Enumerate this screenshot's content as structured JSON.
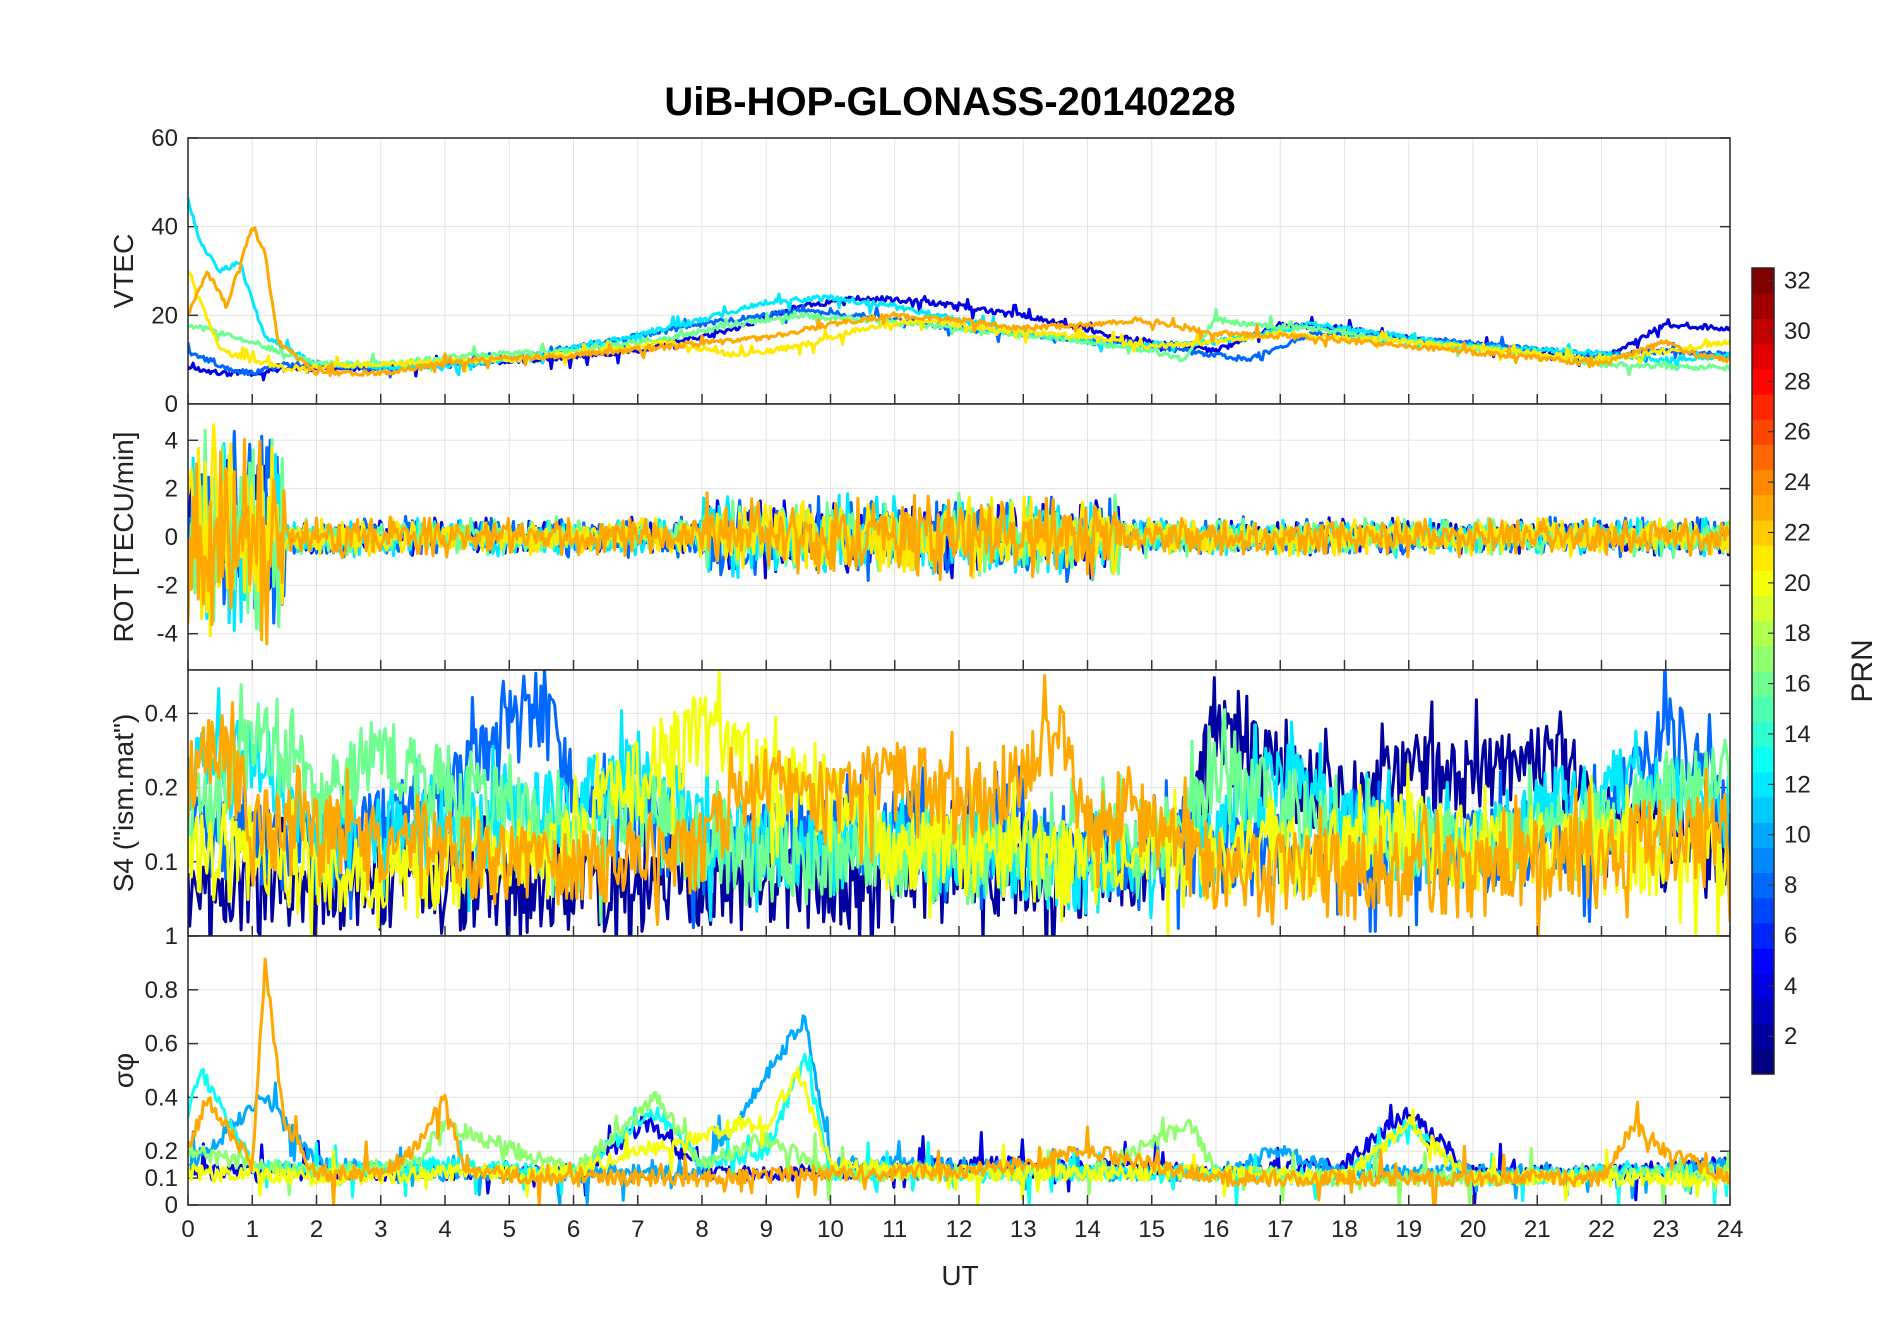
{
  "chart_data": {
    "type": "line",
    "title": "UiB-HOP-GLONASS-20140228",
    "xlabel": "UT",
    "xlim": [
      0,
      24
    ],
    "x_ticks": [
      "0",
      "1",
      "2",
      "3",
      "4",
      "5",
      "6",
      "7",
      "8",
      "9",
      "10",
      "11",
      "12",
      "13",
      "14",
      "15",
      "16",
      "17",
      "18",
      "19",
      "20",
      "21",
      "22",
      "23",
      "24"
    ],
    "panels": [
      {
        "id": "vtec",
        "ylabel": "VTEC",
        "ylim": [
          0,
          60
        ],
        "y_ticks": [
          "0",
          "20",
          "40",
          "60"
        ],
        "y_tick_values": [
          0,
          20,
          40,
          60
        ],
        "scale": "linear",
        "noise": 0.6,
        "series": [
          {
            "prn": 4,
            "x": [
              0,
              0.5,
              1.0,
              1.5,
              2.5,
              4,
              5.5,
              7,
              8.5,
              9.5,
              10.5,
              11.5,
              13,
              14.5,
              16,
              17,
              18,
              19.5,
              21,
              22,
              23,
              24
            ],
            "y": [
              8,
              7,
              7,
              8,
              8,
              9,
              10,
              12,
              17,
              22,
              24,
              23,
              20,
              15,
              12,
              18,
              17,
              14,
              12,
              10,
              18,
              17
            ]
          },
          {
            "prn": 8,
            "x": [
              0,
              0.6,
              1.0,
              1.5,
              3,
              5,
              6.5,
              8,
              9.5,
              10.5,
              12,
              13.5,
              14.5,
              15.5,
              16.5,
              17.5,
              19,
              20.5,
              22,
              23,
              24
            ],
            "y": [
              12,
              8,
              7,
              9,
              8,
              10,
              14,
              18,
              21,
              20,
              17,
              15,
              14,
              12,
              10,
              16,
              15,
              13,
              11,
              12,
              11
            ]
          },
          {
            "prn": 12,
            "x": [
              0,
              0.2,
              0.5,
              0.8,
              1.2,
              2,
              3.5,
              5,
              6.5,
              8,
              9,
              10,
              11,
              12,
              13,
              14.5,
              16,
              17.5,
              19,
              20,
              21.5,
              23,
              24
            ],
            "y": [
              46,
              36,
              30,
              32,
              15,
              9,
              8,
              10,
              14,
              19,
              23,
              24,
              22,
              19,
              16,
              13,
              14,
              18,
              15,
              13,
              12,
              10,
              11
            ]
          },
          {
            "prn": 16,
            "x": [
              0,
              1,
              2,
              3,
              4.5,
              6,
              7.5,
              8.5,
              9.5,
              10.5,
              12,
              13.5,
              14.5,
              15,
              15.5,
              16,
              16.5,
              17.5,
              19,
              20.5,
              22,
              24
            ],
            "y": [
              18,
              14,
              9,
              9,
              11,
              12,
              15,
              18,
              20,
              19,
              17,
              15,
              13,
              12,
              10,
              19,
              18,
              17,
              14,
              12,
              9,
              8
            ]
          },
          {
            "prn": 21,
            "x": [
              0,
              0.5,
              1.0,
              1.5,
              3,
              5,
              6.5,
              7.5,
              8.5,
              9.5,
              10.5,
              11.5,
              12.5,
              14,
              15,
              16,
              17,
              18,
              19,
              20.5,
              22,
              23,
              24
            ],
            "y": [
              30,
              12,
              10,
              8,
              9,
              10,
              12,
              14,
              11,
              13,
              17,
              19,
              17,
              15,
              13,
              14,
              16,
              15,
              14,
              12,
              10,
              12,
              14
            ]
          },
          {
            "prn": 23,
            "x": [
              0,
              0.3,
              0.6,
              1.0,
              1.2,
              1.4,
              2,
              3,
              4.5,
              6,
              7.5,
              9,
              10,
              11,
              12,
              13,
              14,
              14.8,
              16,
              17.5,
              19,
              20.5,
              22,
              23,
              23.5,
              24
            ],
            "y": [
              20,
              30,
              22,
              40,
              34,
              14,
              7,
              7,
              10,
              11,
              13,
              15,
              18,
              20,
              19,
              17,
              18,
              19,
              16,
              15,
              13,
              11,
              9,
              14,
              11,
              10
            ]
          }
        ]
      },
      {
        "id": "rot",
        "ylabel": "ROT [TECU/min]",
        "ylim": [
          -5.5,
          5.5
        ],
        "y_ticks": [
          "-4",
          "-2",
          "0",
          "2",
          "4"
        ],
        "y_tick_values": [
          -4,
          -2,
          0,
          2,
          4
        ],
        "scale": "linear",
        "noise": 0.0,
        "series": [
          {
            "prn": 4,
            "x": [
              0,
              24
            ],
            "y": [
              0,
              0
            ]
          },
          {
            "prn": 8,
            "x": [
              0,
              24
            ],
            "y": [
              0,
              0
            ]
          },
          {
            "prn": 12,
            "x": [
              0,
              24
            ],
            "y": [
              0,
              0
            ]
          },
          {
            "prn": 16,
            "x": [
              0,
              24
            ],
            "y": [
              0,
              0
            ]
          },
          {
            "prn": 21,
            "x": [
              0,
              24
            ],
            "y": [
              0,
              0
            ]
          },
          {
            "prn": 23,
            "x": [
              0,
              24
            ],
            "y": [
              0,
              0
            ]
          }
        ]
      },
      {
        "id": "s4",
        "ylabel": "S4 (\"ism.mat\")",
        "ylim": [
          0.05,
          0.6
        ],
        "y_ticks": [
          "0.1",
          "0.2",
          "0.4"
        ],
        "y_tick_values": [
          0.1,
          0.2,
          0.4
        ],
        "scale": "log",
        "noise": 0.03,
        "series": [
          {
            "prn": 2,
            "x": [
              0,
              2,
              5,
              8,
              10,
              12,
              14,
              15.5,
              16,
              17,
              18,
              19,
              20,
              21,
              22,
              24
            ],
            "y": [
              0.07,
              0.07,
              0.07,
              0.07,
              0.07,
              0.08,
              0.08,
              0.1,
              0.3,
              0.2,
              0.15,
              0.2,
              0.2,
              0.25,
              0.12,
              0.1
            ]
          },
          {
            "prn": 8,
            "x": [
              0,
              2,
              4,
              5,
              5.5,
              6,
              8,
              10,
              12,
              14,
              16,
              18,
              20,
              22,
              23,
              24
            ],
            "y": [
              0.12,
              0.1,
              0.15,
              0.3,
              0.4,
              0.15,
              0.1,
              0.12,
              0.12,
              0.1,
              0.1,
              0.1,
              0.1,
              0.12,
              0.3,
              0.12
            ]
          },
          {
            "prn": 12,
            "x": [
              0,
              1,
              2,
              4,
              6,
              7,
              8,
              10,
              12,
              14,
              16,
              17,
              18,
              20,
              22,
              24
            ],
            "y": [
              0.2,
              0.25,
              0.1,
              0.12,
              0.15,
              0.2,
              0.12,
              0.1,
              0.1,
              0.08,
              0.1,
              0.2,
              0.12,
              0.1,
              0.18,
              0.15
            ]
          },
          {
            "prn": 16,
            "x": [
              0,
              1.3,
              2,
              3,
              3.5,
              4,
              6,
              7,
              8,
              10,
              12,
              14,
              15.5,
              16,
              18,
              20,
              22,
              24
            ],
            "y": [
              0.12,
              0.3,
              0.15,
              0.25,
              0.2,
              0.18,
              0.1,
              0.15,
              0.1,
              0.09,
              0.09,
              0.1,
              0.12,
              0.2,
              0.1,
              0.1,
              0.12,
              0.2
            ]
          },
          {
            "prn": 20,
            "x": [
              0,
              2,
              4,
              6,
              7,
              8,
              9,
              10,
              11,
              12,
              14,
              16,
              18,
              19,
              20,
              22,
              24
            ],
            "y": [
              0.1,
              0.08,
              0.08,
              0.1,
              0.2,
              0.3,
              0.2,
              0.15,
              0.1,
              0.1,
              0.09,
              0.09,
              0.1,
              0.12,
              0.1,
              0.1,
              0.1
            ]
          },
          {
            "prn": 23,
            "x": [
              0,
              0.5,
              1,
              2,
              3,
              4,
              6,
              8,
              9,
              10,
              11,
              12,
              13,
              13.5,
              14,
              14.5,
              16,
              18,
              20,
              22,
              24
            ],
            "y": [
              0.2,
              0.25,
              0.12,
              0.12,
              0.1,
              0.1,
              0.08,
              0.1,
              0.18,
              0.15,
              0.2,
              0.15,
              0.2,
              0.3,
              0.12,
              0.15,
              0.08,
              0.08,
              0.08,
              0.1,
              0.12
            ]
          }
        ]
      },
      {
        "id": "sigma",
        "ylabel": "σφ",
        "ylim": [
          0,
          1
        ],
        "y_ticks": [
          "0",
          "0.1",
          "0.2",
          "0.4",
          "0.6",
          "0.8",
          "1"
        ],
        "y_tick_values": [
          0,
          0.1,
          0.2,
          0.4,
          0.6,
          0.8,
          1
        ],
        "scale": "linear",
        "noise": 0.03,
        "series": [
          {
            "prn": 4,
            "x": [
              0,
              2,
              4,
              6,
              7.2,
              8,
              10,
              12,
              14,
              16,
              18,
              19,
              20,
              22,
              24
            ],
            "y": [
              0.12,
              0.12,
              0.12,
              0.12,
              0.3,
              0.12,
              0.12,
              0.15,
              0.15,
              0.12,
              0.15,
              0.35,
              0.12,
              0.12,
              0.15
            ]
          },
          {
            "prn": 10,
            "x": [
              0,
              1.2,
              2,
              4,
              6,
              8,
              9.6,
              10,
              12,
              14,
              16,
              17,
              18,
              20,
              22,
              24
            ],
            "y": [
              0.15,
              0.4,
              0.15,
              0.12,
              0.12,
              0.12,
              0.7,
              0.15,
              0.15,
              0.12,
              0.12,
              0.2,
              0.12,
              0.12,
              0.12,
              0.15
            ]
          },
          {
            "prn": 13,
            "x": [
              0,
              0.2,
              1,
              2,
              4,
              6,
              7.3,
              8,
              9,
              9.6,
              10,
              12,
              14,
              16,
              18,
              19,
              20,
              22,
              24
            ],
            "y": [
              0.35,
              0.5,
              0.15,
              0.12,
              0.15,
              0.12,
              0.35,
              0.15,
              0.2,
              0.55,
              0.12,
              0.12,
              0.12,
              0.12,
              0.1,
              0.3,
              0.1,
              0.12,
              0.12
            ]
          },
          {
            "prn": 17,
            "x": [
              0,
              1,
              2,
              3.5,
              4,
              6,
              7.3,
              8,
              9,
              10,
              12,
              14,
              15.6,
              16,
              18,
              20,
              22,
              24
            ],
            "y": [
              0.2,
              0.15,
              0.12,
              0.15,
              0.3,
              0.12,
              0.4,
              0.15,
              0.25,
              0.12,
              0.12,
              0.12,
              0.3,
              0.12,
              0.1,
              0.1,
              0.12,
              0.12
            ]
          },
          {
            "prn": 20,
            "x": [
              0,
              2,
              4,
              6,
              7,
              8,
              8.5,
              9,
              9.5,
              10,
              12,
              14,
              16,
              18,
              19,
              20,
              22,
              24
            ],
            "y": [
              0.12,
              0.1,
              0.12,
              0.12,
              0.2,
              0.25,
              0.3,
              0.3,
              0.5,
              0.15,
              0.12,
              0.12,
              0.12,
              0.1,
              0.3,
              0.1,
              0.1,
              0.1
            ]
          },
          {
            "prn": 23,
            "x": [
              0,
              0.3,
              1,
              1.2,
              1.5,
              2,
              3,
              3.5,
              4,
              4.3,
              6,
              8,
              10,
              12,
              13,
              14,
              16,
              18,
              20,
              22,
              22.5,
              23,
              24
            ],
            "y": [
              0.2,
              0.4,
              0.15,
              0.9,
              0.3,
              0.12,
              0.12,
              0.2,
              0.4,
              0.12,
              0.1,
              0.1,
              0.12,
              0.12,
              0.15,
              0.2,
              0.1,
              0.1,
              0.1,
              0.1,
              0.3,
              0.2,
              0.1
            ]
          }
        ]
      }
    ],
    "colorbar": {
      "label": "PRN",
      "range": [
        1,
        32
      ],
      "ticks": [
        "2",
        "4",
        "6",
        "8",
        "10",
        "12",
        "14",
        "16",
        "18",
        "20",
        "22",
        "24",
        "26",
        "28",
        "30",
        "32"
      ],
      "tick_values": [
        2,
        4,
        6,
        8,
        10,
        12,
        14,
        16,
        18,
        20,
        22,
        24,
        26,
        28,
        30,
        32
      ],
      "colormap": "jet"
    },
    "grid": true,
    "legend": "none"
  }
}
